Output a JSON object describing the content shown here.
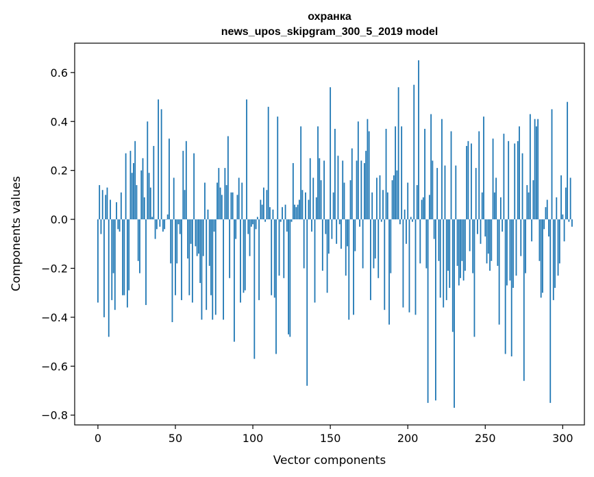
{
  "chart_data": {
    "type": "bar",
    "title": "охранка",
    "subtitle": "news_upos_skipgram_300_5_2019 model",
    "xlabel": "Vector components",
    "ylabel": "Components values",
    "xlim": [
      -15,
      314
    ],
    "ylim": [
      -0.84,
      0.72
    ],
    "xticks": [
      0,
      50,
      100,
      150,
      200,
      250,
      300
    ],
    "xtick_labels": [
      "0",
      "50",
      "100",
      "150",
      "200",
      "250",
      "300"
    ],
    "yticks": [
      -0.8,
      -0.6,
      -0.4,
      -0.2,
      0.0,
      0.2,
      0.4,
      0.6
    ],
    "ytick_labels": [
      "−0.8",
      "−0.6",
      "−0.4",
      "−0.2",
      "0.0",
      "0.2",
      "0.4",
      "0.6"
    ],
    "bar_color": "#1f77b4",
    "grid": false,
    "x_start": 0,
    "values": [
      -0.34,
      0.14,
      -0.06,
      0.12,
      -0.4,
      0.1,
      0.13,
      -0.48,
      0.08,
      -0.33,
      -0.22,
      -0.37,
      0.07,
      -0.04,
      -0.05,
      0.11,
      -0.31,
      -0.31,
      0.27,
      -0.36,
      -0.29,
      0.28,
      0.19,
      0.23,
      0.32,
      0.14,
      -0.17,
      -0.22,
      0.2,
      0.25,
      0.09,
      -0.35,
      0.4,
      0.19,
      0.13,
      0.01,
      0.3,
      -0.08,
      -0.04,
      0.49,
      -0.03,
      0.45,
      -0.05,
      -0.04,
      0.0,
      0.02,
      0.33,
      -0.18,
      -0.42,
      0.17,
      -0.31,
      -0.18,
      -0.02,
      -0.06,
      -0.33,
      0.28,
      0.12,
      0.32,
      -0.16,
      -0.31,
      -0.1,
      -0.34,
      0.27,
      -0.11,
      -0.15,
      -0.14,
      -0.26,
      -0.41,
      -0.15,
      0.15,
      -0.37,
      0.04,
      -0.19,
      -0.31,
      -0.41,
      -0.05,
      -0.39,
      0.15,
      0.21,
      0.13,
      0.1,
      -0.41,
      0.21,
      0.14,
      0.34,
      -0.24,
      0.11,
      0.11,
      -0.5,
      -0.08,
      0.1,
      0.17,
      -0.34,
      0.15,
      -0.3,
      -0.29,
      0.49,
      -0.06,
      -0.15,
      -0.03,
      -0.02,
      -0.57,
      -0.04,
      0.01,
      -0.33,
      0.08,
      0.06,
      0.13,
      -0.01,
      0.12,
      0.46,
      0.05,
      -0.31,
      0.04,
      -0.32,
      -0.55,
      0.42,
      -0.23,
      -0.01,
      0.05,
      -0.24,
      0.06,
      -0.05,
      -0.47,
      -0.48,
      -0.01,
      0.23,
      0.06,
      0.05,
      0.06,
      0.08,
      0.38,
      0.12,
      -0.2,
      0.11,
      -0.68,
      0.08,
      0.25,
      -0.05,
      0.17,
      -0.34,
      0.09,
      0.38,
      0.25,
      0.16,
      -0.21,
      0.24,
      -0.06,
      -0.3,
      -0.14,
      0.54,
      -0.08,
      0.11,
      0.37,
      -0.1,
      0.26,
      -0.02,
      -0.12,
      0.24,
      0.15,
      -0.23,
      -0.11,
      -0.41,
      0.16,
      0.29,
      -0.39,
      -0.13,
      0.24,
      0.4,
      -0.03,
      0.24,
      -0.2,
      0.23,
      0.28,
      0.41,
      0.36,
      -0.33,
      0.11,
      -0.2,
      -0.16,
      0.17,
      -0.24,
      0.18,
      -0.01,
      0.12,
      -0.37,
      0.37,
      0.11,
      -0.43,
      -0.22,
      0.16,
      0.18,
      0.38,
      0.2,
      0.54,
      -0.02,
      0.38,
      -0.36,
      0.04,
      -0.1,
      0.15,
      -0.38,
      0.01,
      -0.01,
      0.55,
      -0.39,
      0.14,
      0.65,
      -0.18,
      0.08,
      0.09,
      0.37,
      -0.2,
      -0.75,
      0.1,
      0.43,
      0.24,
      -0.08,
      -0.74,
      0.21,
      -0.17,
      -0.32,
      0.41,
      -0.36,
      0.22,
      -0.33,
      -0.21,
      -0.28,
      0.36,
      -0.46,
      -0.77,
      0.22,
      -0.19,
      -0.27,
      -0.24,
      -0.17,
      -0.25,
      -0.21,
      0.3,
      0.32,
      -0.13,
      0.31,
      -0.22,
      -0.48,
      0.21,
      -0.06,
      0.36,
      -0.1,
      0.11,
      0.42,
      -0.07,
      -0.18,
      -0.14,
      -0.21,
      -0.17,
      0.33,
      0.11,
      0.17,
      -0.19,
      -0.43,
      0.09,
      -0.05,
      0.35,
      -0.55,
      -0.27,
      0.32,
      -0.25,
      -0.56,
      -0.28,
      0.31,
      -0.23,
      0.32,
      0.38,
      -0.15,
      0.27,
      -0.66,
      -0.22,
      0.14,
      0.11,
      0.43,
      -0.09,
      0.16,
      0.41,
      0.38,
      0.41,
      -0.17,
      -0.32,
      -0.3,
      -0.04,
      0.05,
      0.08,
      -0.07,
      -0.75,
      0.45,
      -0.33,
      -0.28,
      0.09,
      -0.23,
      -0.18,
      0.18,
      0.02,
      -0.09,
      0.13,
      0.48,
      -0.01,
      0.17,
      -0.03
    ]
  }
}
